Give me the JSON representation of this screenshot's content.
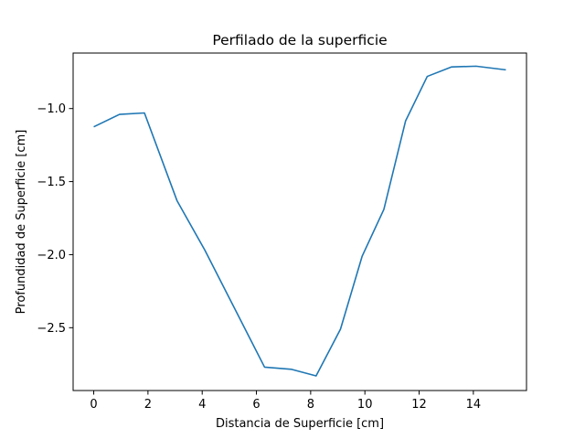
{
  "chart_data": {
    "type": "line",
    "title": "Perfilado de la superficie",
    "xlabel": "Distancia de Superficie [cm]",
    "ylabel": "Profundidad de Superficie [cm]",
    "xlim": [
      -0.76,
      15.96
    ],
    "ylim": [
      -2.93,
      -0.62
    ],
    "xticks": [
      0,
      2,
      4,
      6,
      8,
      10,
      12,
      14
    ],
    "yticks": [
      -2.5,
      -2.0,
      -1.5,
      -1.0
    ],
    "xtick_labels": [
      "0",
      "2",
      "4",
      "6",
      "8",
      "10",
      "12",
      "14"
    ],
    "ytick_labels": [
      "−2.5",
      "−2.0",
      "−1.5",
      "−1.0"
    ],
    "grid": false,
    "series": [
      {
        "color": "#1f77b4",
        "x": [
          0.0,
          0.95,
          1.87,
          3.07,
          4.1,
          6.3,
          7.3,
          8.2,
          9.1,
          9.9,
          10.7,
          11.5,
          12.3,
          13.2,
          14.1,
          15.2
        ],
        "y": [
          -1.125,
          -1.04,
          -1.03,
          -1.63,
          -1.97,
          -2.77,
          -2.785,
          -2.83,
          -2.51,
          -2.01,
          -1.69,
          -1.085,
          -0.78,
          -0.715,
          -0.71,
          -0.735
        ]
      }
    ]
  }
}
